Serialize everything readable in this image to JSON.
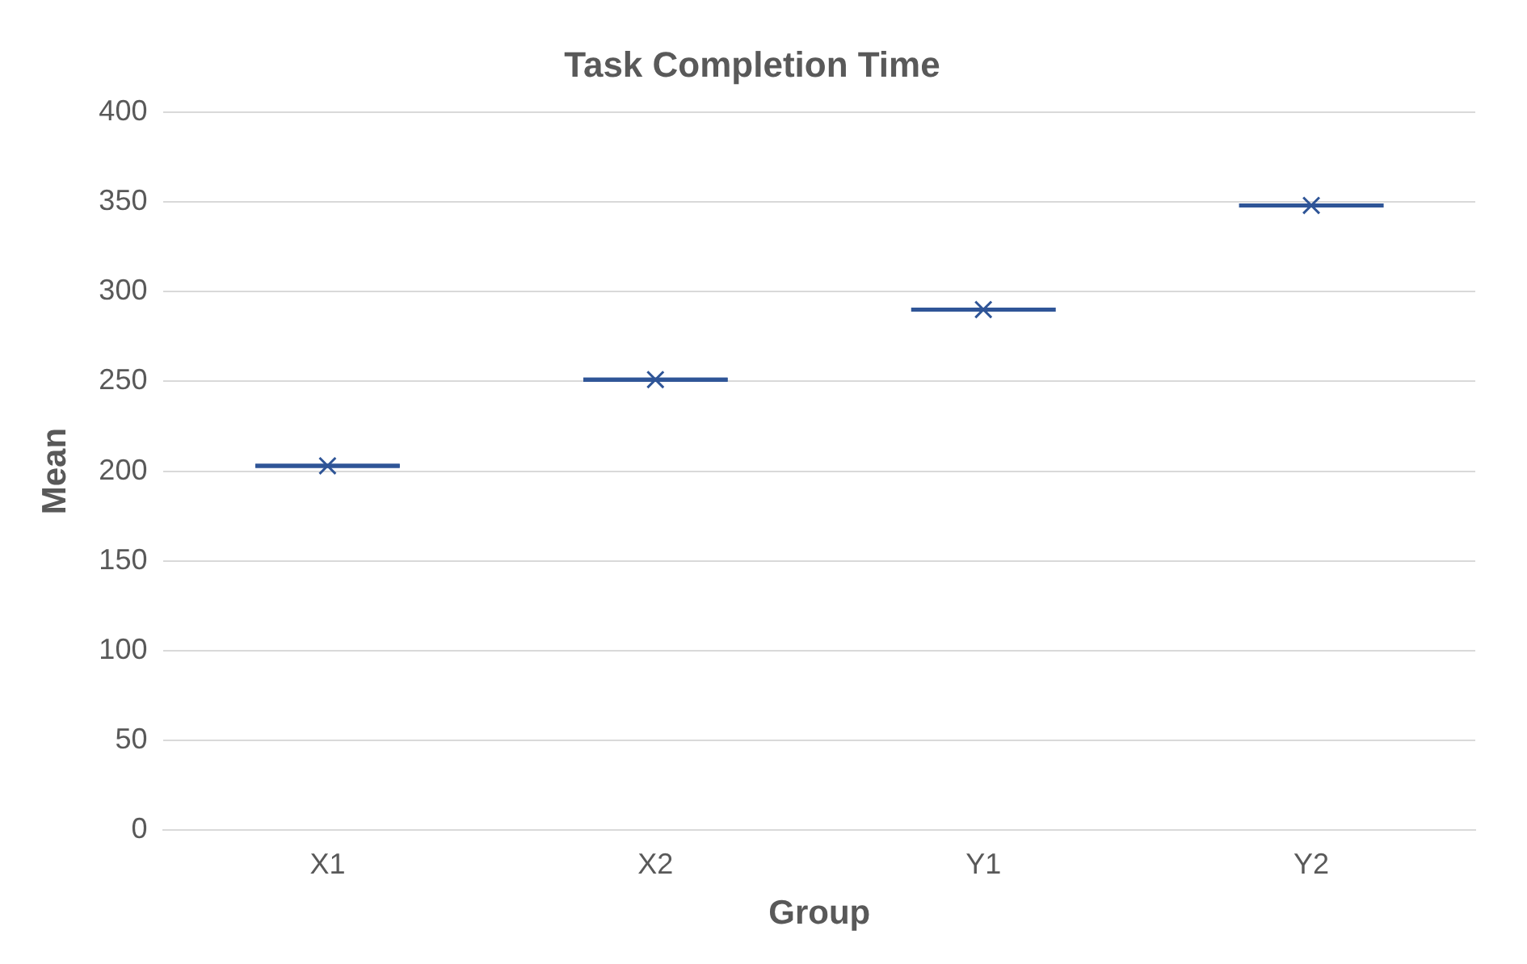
{
  "chart_data": {
    "type": "box",
    "title": "Task Completion Time",
    "xlabel": "Group",
    "ylabel": "Mean",
    "categories": [
      "X1",
      "X2",
      "Y1",
      "Y2"
    ],
    "series": [
      {
        "color": "#2f5597",
        "boxes": [
          {
            "low": 203,
            "q1": 203,
            "median": 203,
            "q3": 203,
            "high": 203,
            "mean": 203
          },
          {
            "low": 251,
            "q1": 251,
            "median": 251,
            "q3": 251,
            "high": 251,
            "mean": 251
          },
          {
            "low": 290,
            "q1": 290,
            "median": 290,
            "q3": 290,
            "high": 290,
            "mean": 290
          },
          {
            "low": 348,
            "q1": 348,
            "median": 348,
            "q3": 348,
            "high": 348,
            "mean": 348
          }
        ]
      }
    ],
    "ylim": [
      0,
      400
    ],
    "yticks": [
      0,
      50,
      100,
      150,
      200,
      250,
      300,
      350,
      400
    ],
    "grid": "y",
    "legend": false,
    "marker": "cross"
  }
}
